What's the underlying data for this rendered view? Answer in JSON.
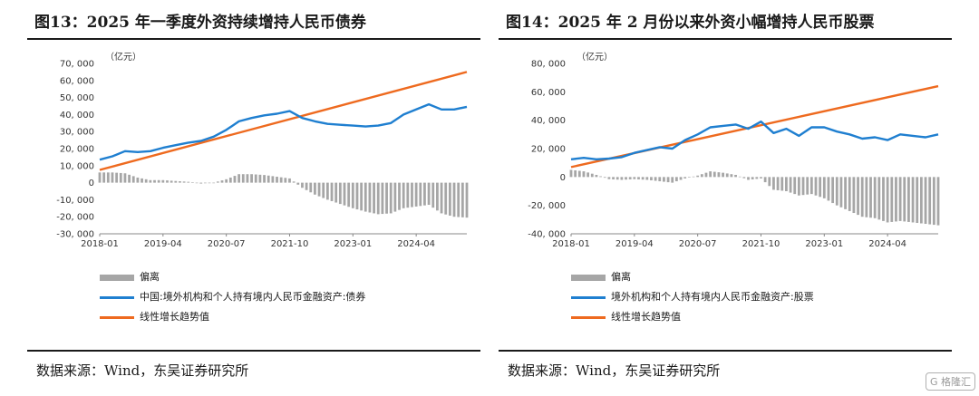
{
  "watermark": "G 格隆汇",
  "chart_data": [
    {
      "type": "bar+line",
      "title": "图13：2025 年一季度外资持续增持人民币债券",
      "unit_label": "（亿元）",
      "ylim": [
        -30000,
        70000
      ],
      "yticks": [
        -30000,
        -20000,
        -10000,
        0,
        10000,
        20000,
        30000,
        40000,
        50000,
        60000,
        70000
      ],
      "ytick_labels": [
        "-30, 000",
        "-20, 000",
        "-10, 000",
        "0",
        "10, 000",
        "20, 000",
        "30, 000",
        "40, 000",
        "50, 000",
        "60, 000",
        "70, 000"
      ],
      "xlim": [
        2018.0,
        2025.25
      ],
      "xticks": [
        2018.0,
        2019.25,
        2020.5,
        2021.75,
        2023.0,
        2024.25
      ],
      "xtick_labels": [
        "2018-01",
        "2019-04",
        "2020-07",
        "2021-10",
        "2023-01",
        "2024-04"
      ],
      "legend": [
        "偏离",
        "中国:境外机构和个人持有境内人民币金融资产:债券",
        "线性增长趋势值"
      ],
      "colors": {
        "deviation": "#a6a6a6",
        "actual": "#1f7fd0",
        "trend": "#ee6a1f"
      },
      "actual": {
        "x": [
          2018.0,
          2018.25,
          2018.5,
          2018.75,
          2019.0,
          2019.25,
          2019.5,
          2019.75,
          2020.0,
          2020.25,
          2020.5,
          2020.75,
          2021.0,
          2021.25,
          2021.5,
          2021.75,
          2022.0,
          2022.25,
          2022.5,
          2022.75,
          2023.0,
          2023.25,
          2023.5,
          2023.75,
          2024.0,
          2024.25,
          2024.5,
          2024.75,
          2025.0,
          2025.25
        ],
        "y": [
          13500,
          15500,
          18500,
          18000,
          18500,
          20500,
          22000,
          23500,
          24500,
          27000,
          31000,
          36000,
          38000,
          39500,
          40500,
          42000,
          38000,
          36000,
          34500,
          34000,
          33500,
          33000,
          33500,
          35000,
          40000,
          43000,
          46000,
          43000,
          43000,
          44500
        ]
      },
      "trend": {
        "x": [
          2018.0,
          2025.25
        ],
        "y": [
          7500,
          65000
        ]
      },
      "deviation": {
        "x": [
          2018.0,
          2018.25,
          2018.5,
          2018.75,
          2019.0,
          2019.25,
          2019.5,
          2019.75,
          2020.0,
          2020.25,
          2020.5,
          2020.75,
          2021.0,
          2021.25,
          2021.5,
          2021.75,
          2022.0,
          2022.25,
          2022.5,
          2022.75,
          2023.0,
          2023.25,
          2023.5,
          2023.75,
          2024.0,
          2024.25,
          2024.5,
          2024.75,
          2025.0,
          2025.25
        ],
        "y": [
          6000,
          6000,
          5500,
          3000,
          1500,
          1500,
          1000,
          500,
          -500,
          0,
          2000,
          5000,
          5000,
          4500,
          3500,
          2500,
          -3000,
          -7000,
          -10000,
          -12500,
          -15000,
          -17000,
          -18500,
          -18000,
          -15000,
          -14000,
          -13000,
          -18000,
          -20000,
          -20500
        ]
      }
    },
    {
      "type": "bar+line",
      "title": "图14：2025 年 2 月份以来外资小幅增持人民币股票",
      "unit_label": "（亿元）",
      "ylim": [
        -40000,
        80000
      ],
      "yticks": [
        -40000,
        -20000,
        0,
        20000,
        40000,
        60000,
        80000
      ],
      "ytick_labels": [
        "-40, 000",
        "-20, 000",
        "0",
        "20, 000",
        "40, 000",
        "60, 000",
        "80, 000"
      ],
      "xlim": [
        2018.0,
        2025.25
      ],
      "xticks": [
        2018.0,
        2019.25,
        2020.5,
        2021.75,
        2023.0,
        2024.25
      ],
      "xtick_labels": [
        "2018-01",
        "2019-04",
        "2020-07",
        "2021-10",
        "2023-01",
        "2024-04"
      ],
      "legend": [
        "偏离",
        "境外机构和个人持有境内人民币金融资产:股票",
        "线性增长趋势值"
      ],
      "colors": {
        "deviation": "#a6a6a6",
        "actual": "#1f7fd0",
        "trend": "#ee6a1f"
      },
      "actual": {
        "x": [
          2018.0,
          2018.25,
          2018.5,
          2018.75,
          2019.0,
          2019.25,
          2019.5,
          2019.75,
          2020.0,
          2020.25,
          2020.5,
          2020.75,
          2021.0,
          2021.25,
          2021.5,
          2021.75,
          2022.0,
          2022.25,
          2022.5,
          2022.75,
          2023.0,
          2023.25,
          2023.5,
          2023.75,
          2024.0,
          2024.25,
          2024.5,
          2024.75,
          2025.0,
          2025.25
        ],
        "y": [
          12500,
          13500,
          12500,
          13000,
          14000,
          17000,
          19000,
          21000,
          20000,
          26000,
          30000,
          35000,
          36000,
          37000,
          34000,
          39000,
          31000,
          34000,
          29000,
          35000,
          35000,
          32000,
          30000,
          27000,
          28000,
          26000,
          30000,
          29000,
          28000,
          30000
        ]
      },
      "trend": {
        "x": [
          2018.0,
          2025.25
        ],
        "y": [
          7000,
          64000
        ]
      },
      "deviation": {
        "x": [
          2018.0,
          2018.25,
          2018.5,
          2018.75,
          2019.0,
          2019.25,
          2019.5,
          2019.75,
          2020.0,
          2020.25,
          2020.5,
          2020.75,
          2021.0,
          2021.25,
          2021.5,
          2021.75,
          2022.0,
          2022.25,
          2022.5,
          2022.75,
          2023.0,
          2023.25,
          2023.5,
          2023.75,
          2024.0,
          2024.25,
          2024.5,
          2024.75,
          2025.0,
          2025.25
        ],
        "y": [
          5000,
          4000,
          1500,
          -1500,
          -2000,
          -1500,
          -2000,
          -3000,
          -4000,
          -1000,
          1000,
          4000,
          3000,
          1500,
          -2000,
          -1000,
          -9000,
          -10000,
          -13000,
          -12000,
          -15000,
          -20000,
          -24000,
          -28000,
          -29000,
          -32000,
          -31000,
          -32000,
          -33000,
          -34000
        ]
      }
    }
  ],
  "sources": [
    "数据来源：Wind，东吴证券研究所",
    "数据来源：Wind，东吴证券研究所"
  ]
}
